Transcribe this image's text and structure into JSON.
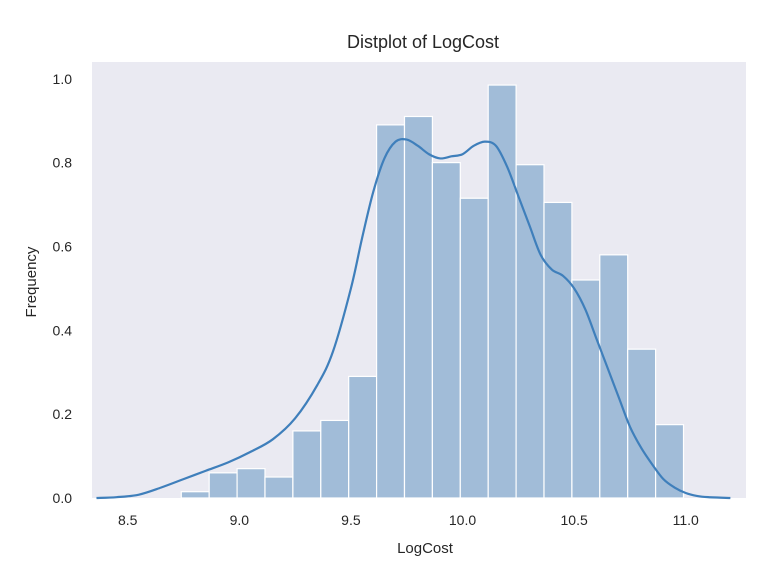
{
  "chart_data": {
    "type": "bar",
    "subtype": "histogram-with-kde",
    "title": "Distplot of LogCost",
    "xlabel": "LogCost",
    "ylabel": "Frequency",
    "xlim": [
      8.34,
      11.27
    ],
    "ylim": [
      0.0,
      1.04
    ],
    "xticks": [
      8.5,
      9.0,
      9.5,
      10.0,
      10.5,
      11.0
    ],
    "xtick_labels": [
      "8.5",
      "9.0",
      "9.5",
      "10.0",
      "10.5",
      "11.0"
    ],
    "yticks": [
      0.0,
      0.2,
      0.4,
      0.6,
      0.8,
      1.0
    ],
    "ytick_labels": [
      "0.0",
      "0.2",
      "0.4",
      "0.6",
      "0.8",
      "1.0"
    ],
    "grid": false,
    "background": "#eaeaf2",
    "bar_color": "#a1bcd8",
    "line_color": "#3f7fbb",
    "bins": {
      "edges": [
        8.74,
        8.865,
        8.99,
        9.115,
        9.24,
        9.365,
        9.49,
        9.615,
        9.74,
        9.865,
        9.99,
        10.115,
        10.24,
        10.365,
        10.49,
        10.615,
        10.74,
        10.865
      ],
      "values": [
        0.015,
        0.06,
        0.07,
        0.05,
        0.16,
        0.185,
        0.29,
        0.89,
        0.91,
        0.8,
        0.715,
        0.985,
        0.795,
        0.705,
        0.52,
        0.58,
        0.355,
        0.175
      ]
    },
    "kde": {
      "x": [
        8.36,
        8.45,
        8.55,
        8.65,
        8.75,
        8.85,
        8.95,
        9.05,
        9.15,
        9.25,
        9.35,
        9.42,
        9.5,
        9.55,
        9.6,
        9.65,
        9.7,
        9.75,
        9.8,
        9.85,
        9.9,
        9.95,
        10.0,
        10.05,
        10.1,
        10.15,
        10.2,
        10.25,
        10.3,
        10.35,
        10.4,
        10.45,
        10.5,
        10.55,
        10.6,
        10.65,
        10.7,
        10.75,
        10.8,
        10.85,
        10.9,
        10.95,
        11.0,
        11.05,
        11.1,
        11.2
      ],
      "y": [
        0.0,
        0.002,
        0.008,
        0.025,
        0.045,
        0.065,
        0.085,
        0.11,
        0.14,
        0.19,
        0.27,
        0.35,
        0.5,
        0.62,
        0.73,
        0.81,
        0.85,
        0.855,
        0.84,
        0.82,
        0.81,
        0.815,
        0.82,
        0.84,
        0.85,
        0.84,
        0.79,
        0.72,
        0.65,
        0.58,
        0.545,
        0.53,
        0.5,
        0.45,
        0.38,
        0.31,
        0.24,
        0.17,
        0.12,
        0.08,
        0.045,
        0.025,
        0.012,
        0.005,
        0.002,
        0.0
      ]
    }
  }
}
